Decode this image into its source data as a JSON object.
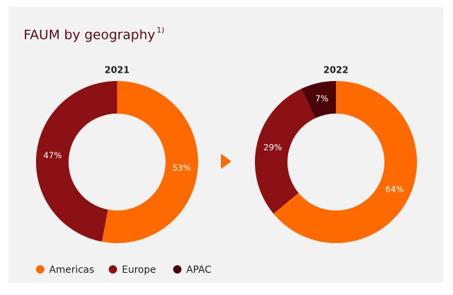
{
  "title": "FAUM by geography",
  "title_note": "1)",
  "legend": {
    "labels": [
      "Americas",
      "Europe",
      "APAC"
    ],
    "colors": [
      "#ff6a00",
      "#8b1114",
      "#4b0508"
    ]
  },
  "chart_data": [
    {
      "type": "donut",
      "title": "2021",
      "categories": [
        "Americas",
        "Europe"
      ],
      "values": [
        53,
        47
      ],
      "value_labels": [
        "53%",
        "47%"
      ],
      "colors": [
        "#ff6a00",
        "#8b1114"
      ]
    },
    {
      "type": "donut",
      "title": "2022",
      "categories": [
        "Americas",
        "Europe",
        "APAC"
      ],
      "values": [
        64,
        29,
        7
      ],
      "value_labels": [
        "64%",
        "29%",
        "7%"
      ],
      "colors": [
        "#ff6a00",
        "#8b1114",
        "#4b0508"
      ]
    }
  ]
}
